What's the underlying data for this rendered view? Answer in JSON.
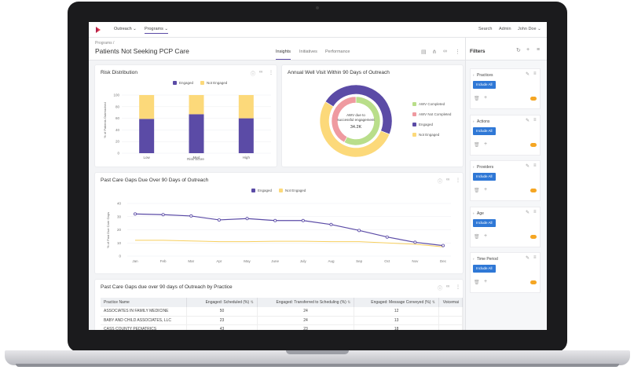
{
  "nav": {
    "items": [
      "Outreach",
      "Programs"
    ],
    "right": [
      "Search",
      "Admin",
      "John Doe"
    ]
  },
  "page": {
    "breadcrumb": "Programs /",
    "title": "Patients Not Seeking PCP Care",
    "tabs": [
      "Insights",
      "Initiatives",
      "Performance"
    ]
  },
  "filters": {
    "title": "Filters",
    "include_label": "Include All",
    "items": [
      "Practices",
      "Actions",
      "Providers",
      "Age",
      "Time Period"
    ]
  },
  "risk": {
    "title": "Risk Distribution",
    "legend": [
      "Engaged",
      "Not Engaged"
    ],
    "ylabel": "% of Patients Outreached",
    "xlabel": "Risk Score"
  },
  "awv": {
    "title": "Annual Well Visit Within 90 Days of Outreach",
    "center_line1": "AWV due to",
    "center_line2": "successful engagement",
    "center_value": "34.2K",
    "legend": [
      "AWV Completed",
      "AWV Not Completed",
      "Engaged",
      "Not Engaged"
    ]
  },
  "gaps": {
    "title": "Past Care Gaps Due Over 90 Days of Outreach",
    "legend": [
      "Engaged",
      "Not Engaged"
    ],
    "ylabel": "% of Past Due Care Gaps"
  },
  "practice_table": {
    "title": "Past Care Gaps due over 90 days of Outreach by Practice",
    "columns": [
      "Practice Name",
      "Engaged: Scheduled (%)",
      "Engaged: Transferred to Scheduling (%)",
      "Engaged: Message Conveyed (%)",
      "Voicemai"
    ],
    "rows": [
      [
        "ASSOCIATES IN FAMILY MEDICINE",
        "50",
        "24",
        "12",
        ""
      ],
      [
        "BABY AND CHILD ASSOCIATES, LLC",
        "23",
        "24",
        "13",
        ""
      ],
      [
        "CASS COUNTY PEDIATRICS",
        "43",
        "23",
        "18",
        ""
      ]
    ]
  },
  "colors": {
    "engaged": "#5b4ba6",
    "not_engaged": "#fcd97a",
    "awv_completed": "#b9de8a",
    "awv_not_completed": "#ef9aa0",
    "accent": "#2f78d6",
    "toggle": "#f5a623"
  },
  "chart_data": [
    {
      "type": "bar",
      "title": "Risk Distribution",
      "xlabel": "Risk Score",
      "ylabel": "% of Patients Outreached",
      "categories": [
        "Low",
        "Med",
        "High"
      ],
      "series": [
        {
          "name": "Engaged",
          "values": [
            59,
            67,
            60
          ]
        },
        {
          "name": "Not Engaged",
          "values": [
            41,
            33,
            40
          ]
        }
      ],
      "stacked": true,
      "ylim": [
        0,
        100
      ],
      "yticks": [
        0,
        20,
        40,
        60,
        80,
        100
      ],
      "legend": "top"
    },
    {
      "type": "pie",
      "title": "Annual Well Visit Within 90 Days of Outreach",
      "rings": [
        {
          "name": "outer",
          "slices": [
            {
              "label": "Engaged",
              "value": 47
            },
            {
              "label": "Not Engaged",
              "value": 53
            }
          ]
        },
        {
          "name": "inner",
          "slices": [
            {
              "label": "AWV Completed",
              "value": 58
            },
            {
              "label": "AWV Not Completed",
              "value": 42
            }
          ]
        }
      ],
      "center_value": "34.2K",
      "legend": "right"
    },
    {
      "type": "line",
      "title": "Past Care Gaps Due Over 90 Days of Outreach",
      "ylabel": "% of Past Due Care Gaps",
      "categories": [
        "Jan",
        "Feb",
        "Mar",
        "Apr",
        "May",
        "June",
        "July",
        "Aug",
        "Sep",
        "Oct",
        "Nov",
        "Dec"
      ],
      "series": [
        {
          "name": "Engaged",
          "values": [
            32,
            31.5,
            30.5,
            27.5,
            28.5,
            27,
            27,
            24,
            19.5,
            14.5,
            10.5,
            8
          ]
        },
        {
          "name": "Not Engaged",
          "values": [
            12,
            12,
            11.5,
            11,
            11,
            11.3,
            11.3,
            11,
            11,
            10,
            9,
            7
          ]
        }
      ],
      "ylim": [
        0,
        40
      ],
      "yticks": [
        0,
        10,
        20,
        30,
        40
      ],
      "legend": "top"
    }
  ]
}
